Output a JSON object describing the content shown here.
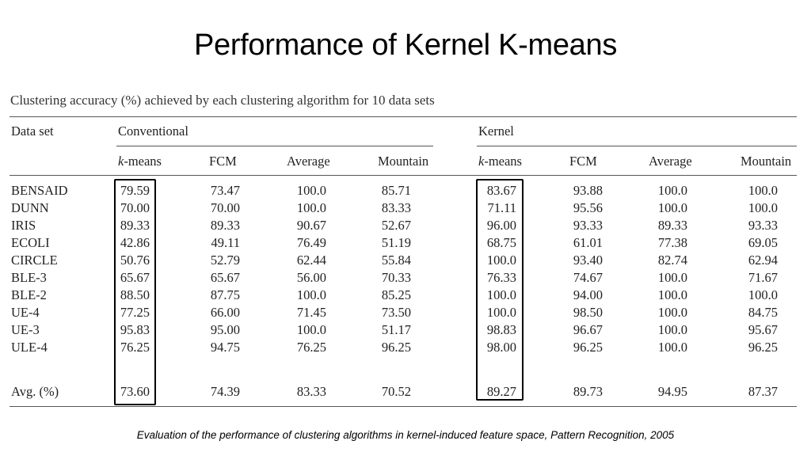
{
  "title": "Performance of Kernel K-means",
  "table": {
    "caption": "Clustering accuracy (%) achieved by each clustering algorithm for 10 data sets",
    "dataset_header": "Data set",
    "group_conventional": "Conventional",
    "group_kernel": "Kernel",
    "col_kmeans_k": "k",
    "col_kmeans_rest": "-means",
    "col_fcm": "FCM",
    "col_average": "Average",
    "col_mountain": "Mountain",
    "rows": [
      {
        "name": "BENSAID",
        "c": [
          "79.59",
          "73.47",
          "100.0",
          "85.71"
        ],
        "k": [
          "83.67",
          "93.88",
          "100.0",
          "100.0"
        ]
      },
      {
        "name": "DUNN",
        "c": [
          "70.00",
          "70.00",
          "100.0",
          "83.33"
        ],
        "k": [
          "71.11",
          "95.56",
          "100.0",
          "100.0"
        ]
      },
      {
        "name": "IRIS",
        "c": [
          "89.33",
          "89.33",
          "90.67",
          "52.67"
        ],
        "k": [
          "96.00",
          "93.33",
          "89.33",
          "93.33"
        ]
      },
      {
        "name": "ECOLI",
        "c": [
          "42.86",
          "49.11",
          "76.49",
          "51.19"
        ],
        "k": [
          "68.75",
          "61.01",
          "77.38",
          "69.05"
        ]
      },
      {
        "name": "CIRCLE",
        "c": [
          "50.76",
          "52.79",
          "62.44",
          "55.84"
        ],
        "k": [
          "100.0",
          "93.40",
          "82.74",
          "62.94"
        ]
      },
      {
        "name": "BLE-3",
        "c": [
          "65.67",
          "65.67",
          "56.00",
          "70.33"
        ],
        "k": [
          "76.33",
          "74.67",
          "100.0",
          "71.67"
        ]
      },
      {
        "name": "BLE-2",
        "c": [
          "88.50",
          "87.75",
          "100.0",
          "85.25"
        ],
        "k": [
          "100.0",
          "94.00",
          "100.0",
          "100.0"
        ]
      },
      {
        "name": "UE-4",
        "c": [
          "77.25",
          "66.00",
          "71.45",
          "73.50"
        ],
        "k": [
          "100.0",
          "98.50",
          "100.0",
          "84.75"
        ]
      },
      {
        "name": "UE-3",
        "c": [
          "95.83",
          "95.00",
          "100.0",
          "51.17"
        ],
        "k": [
          "98.83",
          "96.67",
          "100.0",
          "95.67"
        ]
      },
      {
        "name": "ULE-4",
        "c": [
          "76.25",
          "94.75",
          "76.25",
          "96.25"
        ],
        "k": [
          "98.00",
          "96.25",
          "100.0",
          "96.25"
        ]
      }
    ],
    "avg": {
      "name": "Avg. (%)",
      "c": [
        "73.60",
        "74.39",
        "83.33",
        "70.52"
      ],
      "k": [
        "89.27",
        "89.73",
        "94.95",
        "87.37"
      ]
    }
  },
  "footnote": "Evaluation of the performance of clustering algorithms in kernel-induced feature space, Pattern Recognition, 2005"
}
